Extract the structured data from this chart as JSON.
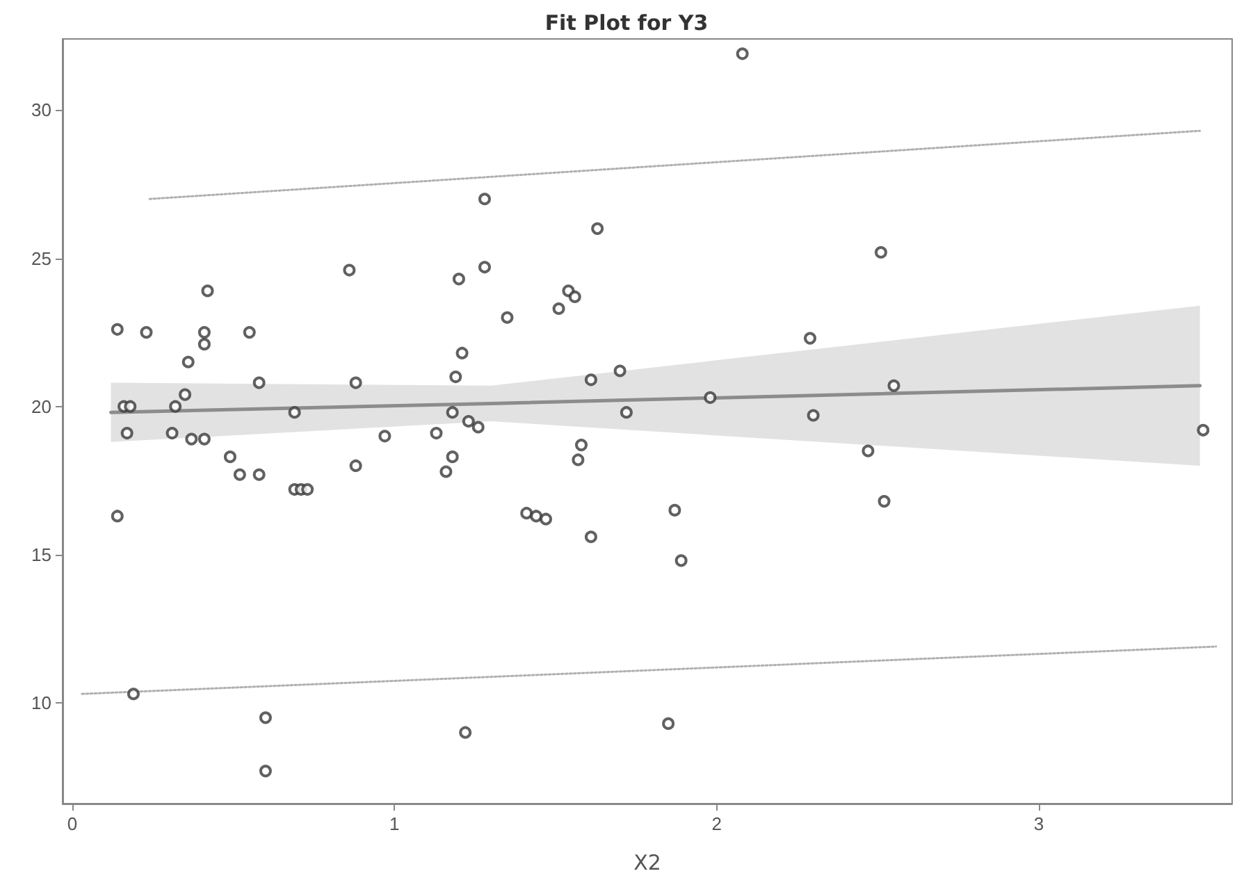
{
  "chart_data": {
    "type": "scatter",
    "title": "Fit Plot for Y3",
    "xlabel": "X2",
    "xlim": [
      -0.03,
      3.6
    ],
    "ylim": [
      6.6,
      32.4
    ],
    "xticks": [
      0,
      1,
      2,
      3
    ],
    "yticks": [
      10,
      15,
      20,
      25,
      30
    ],
    "grid": false,
    "series": [
      {
        "color": "#3a3a3a",
        "marker": "circle",
        "x": [
          0.14,
          0.23,
          0.16,
          0.18,
          0.17,
          0.14,
          0.19,
          0.31,
          0.32,
          0.35,
          0.36,
          0.41,
          0.41,
          0.42,
          0.37,
          0.41,
          0.49,
          0.52,
          0.55,
          0.58,
          0.58,
          0.6,
          0.6,
          0.69,
          0.71,
          0.73,
          0.69,
          0.86,
          0.88,
          0.88,
          0.97,
          1.13,
          1.16,
          1.18,
          1.18,
          1.19,
          1.21,
          1.2,
          1.23,
          1.26,
          1.28,
          1.28,
          1.22,
          1.35,
          1.41,
          1.44,
          1.47,
          1.51,
          1.54,
          1.56,
          1.57,
          1.58,
          1.61,
          1.63,
          1.61,
          1.7,
          1.72,
          1.85,
          1.87,
          1.89,
          1.98,
          2.08,
          2.29,
          2.3,
          2.47,
          2.51,
          2.52,
          2.55,
          3.51
        ],
        "values": [
          22.6,
          22.5,
          20.0,
          20.0,
          19.1,
          16.3,
          10.3,
          19.1,
          20.0,
          20.4,
          21.5,
          22.5,
          22.1,
          23.9,
          18.9,
          18.9,
          18.3,
          17.7,
          22.5,
          20.8,
          17.7,
          9.5,
          7.7,
          17.2,
          17.2,
          17.2,
          19.8,
          24.6,
          20.8,
          18.0,
          19.0,
          19.1,
          17.8,
          18.3,
          19.8,
          21.0,
          21.8,
          24.3,
          19.5,
          19.3,
          27.0,
          24.7,
          9.0,
          23.0,
          16.4,
          16.3,
          16.2,
          23.3,
          23.9,
          23.7,
          18.2,
          18.7,
          20.9,
          26.0,
          15.6,
          21.2,
          19.8,
          9.3,
          16.5,
          14.8,
          20.3,
          31.9,
          22.3,
          19.7,
          18.5,
          25.2,
          16.8,
          20.7,
          19.2
        ]
      },
      {
        "type": "line",
        "color": "#8c8c8c",
        "marker": "none",
        "line_style": "solid",
        "x": [
          0.12,
          1.3,
          3.5
        ],
        "values": [
          19.8,
          20.1,
          20.7
        ],
        "lower": [
          18.8,
          19.5,
          18.0
        ],
        "upper": [
          20.8,
          20.7,
          23.4
        ]
      },
      {
        "type": "line",
        "color": "#b0b0b0",
        "marker": "none",
        "line_style": "dotted",
        "x": [
          0.24,
          3.5
        ],
        "values": [
          27.0,
          29.3
        ]
      },
      {
        "type": "line",
        "color": "#b0b0b0",
        "marker": "none",
        "line_style": "dotted",
        "x": [
          0.03,
          3.55
        ],
        "values": [
          10.3,
          11.9
        ]
      }
    ]
  }
}
